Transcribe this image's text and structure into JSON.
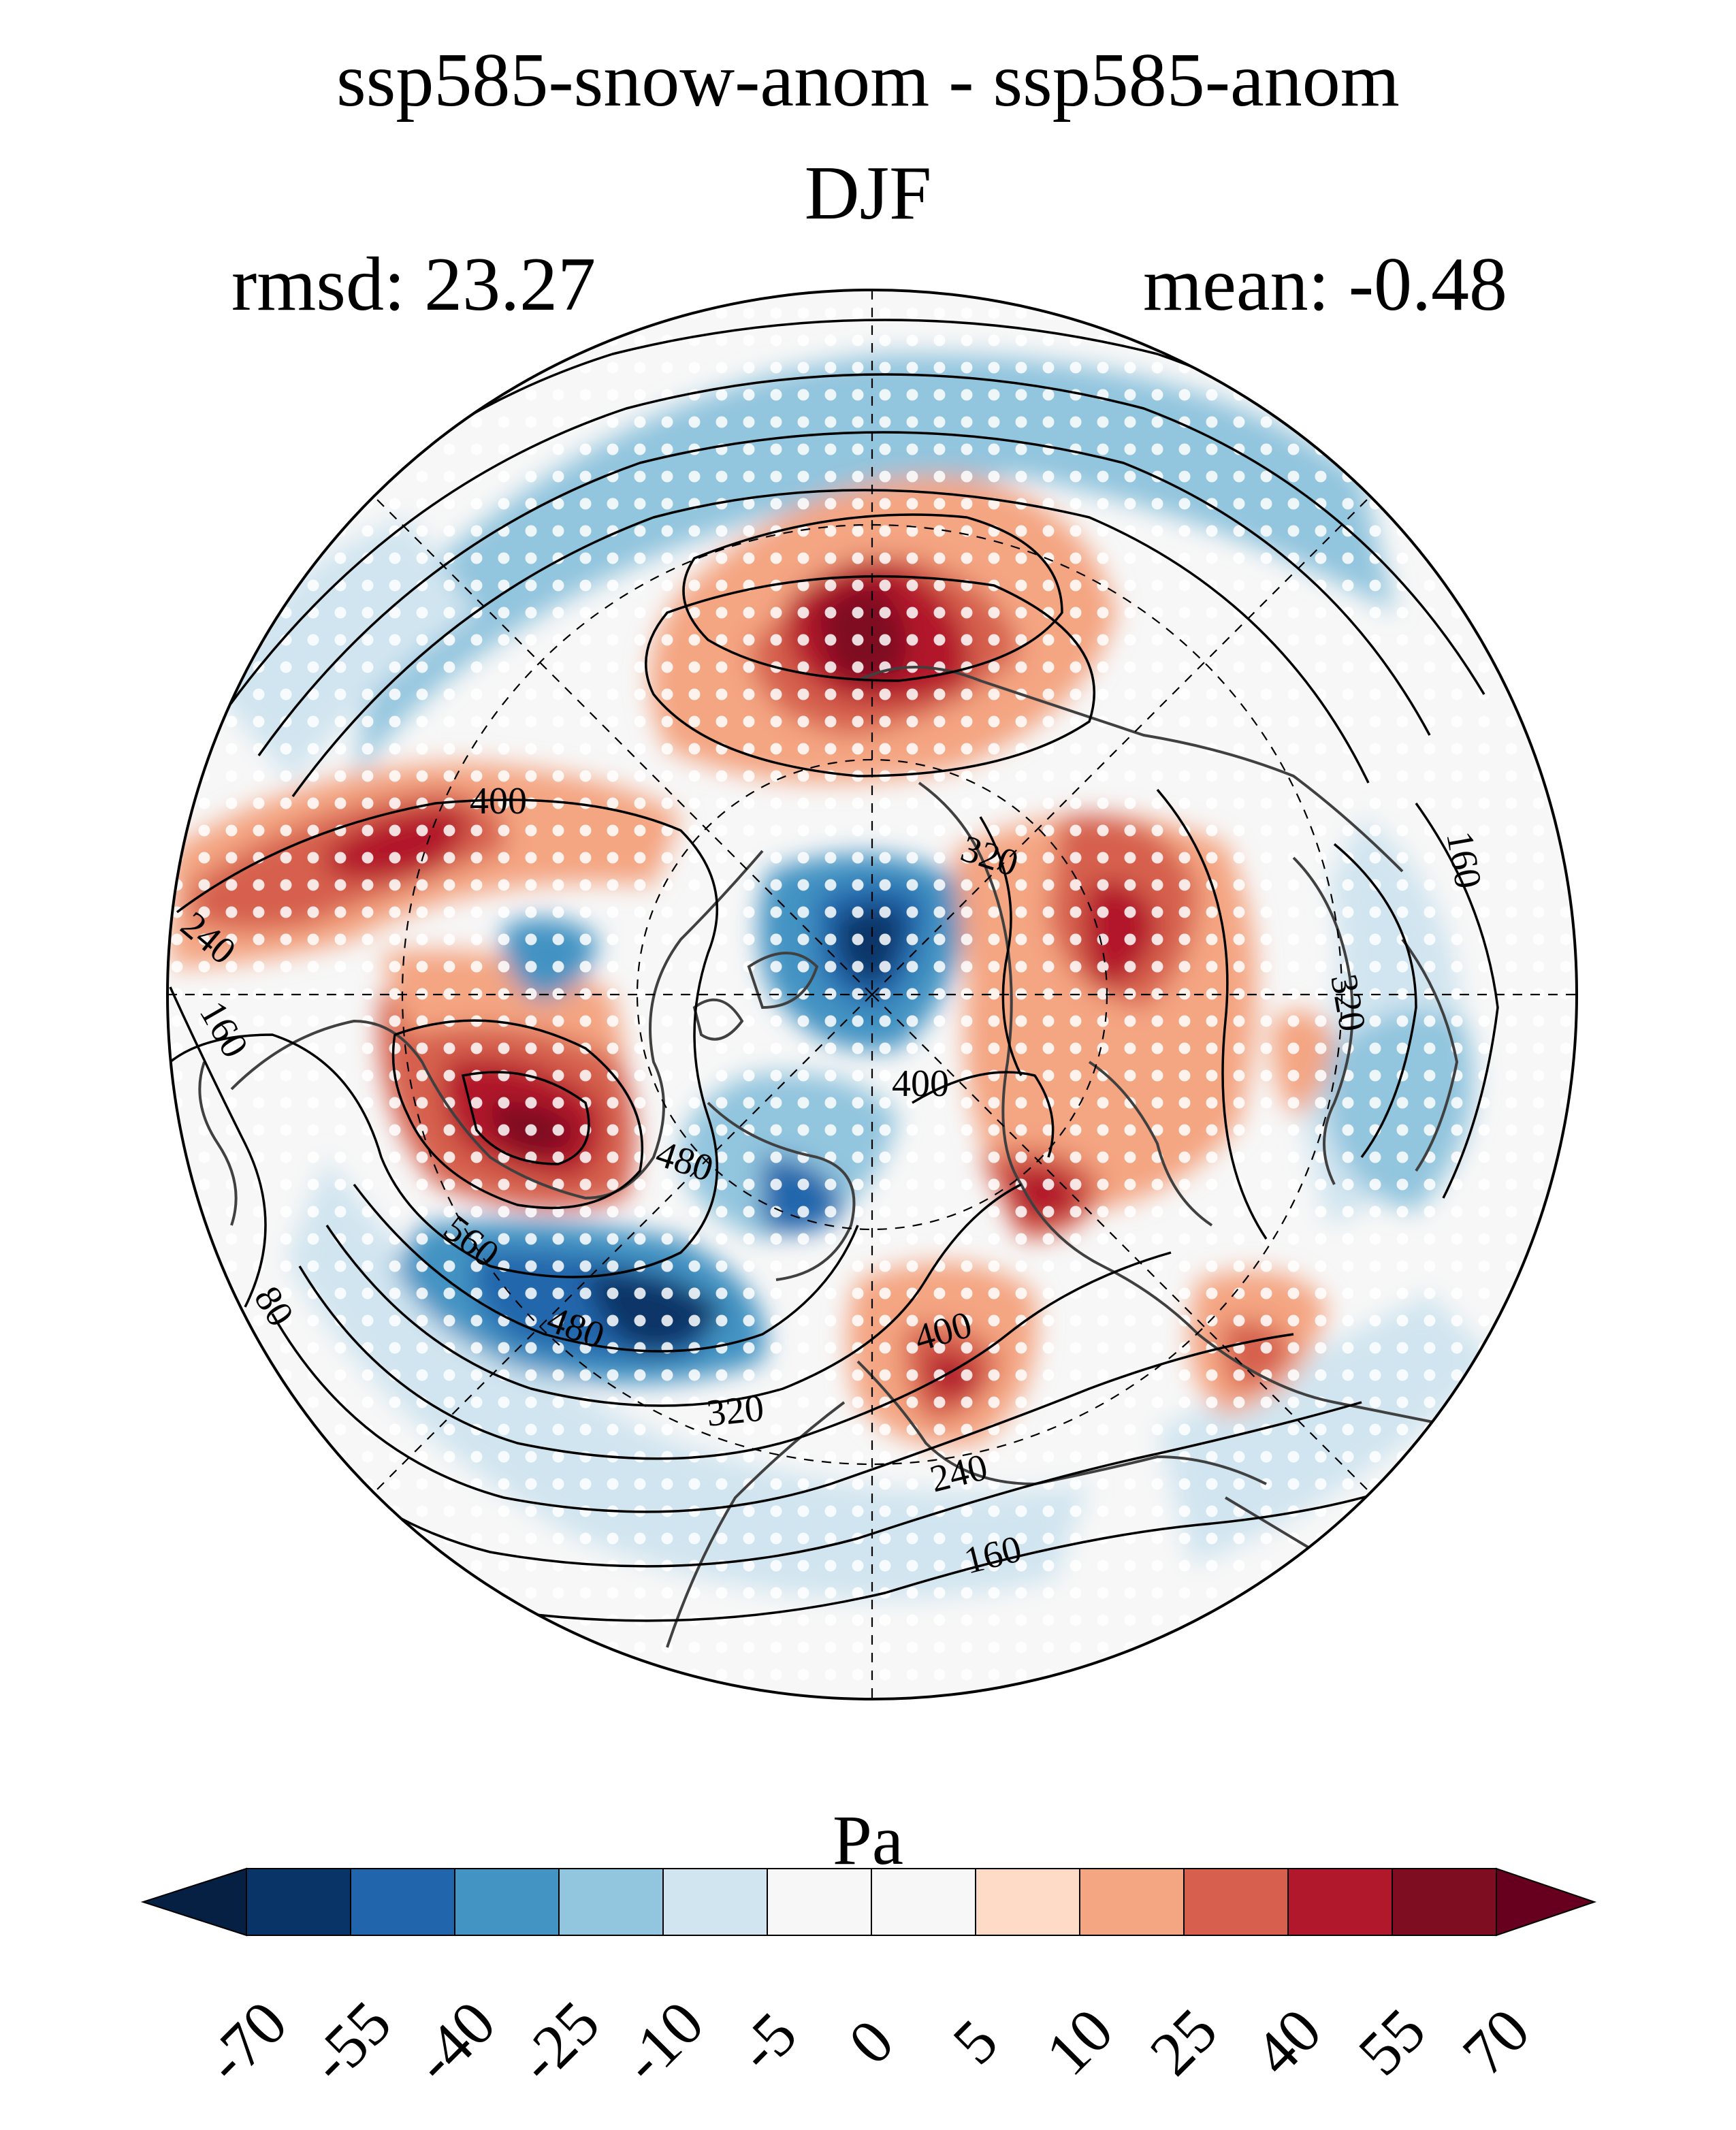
{
  "figure": {
    "title": "ssp585-snow-anom - ssp585-anom",
    "season": "DJF",
    "rmsd_text": "rmsd: 23.27",
    "mean_text": "mean: -0.48"
  },
  "map": {
    "projection": "north polar stereographic",
    "stippling": "white dots",
    "contour_color": "#000000",
    "coastline_color": "#404040",
    "contour_labels": [
      {
        "id": "c400a",
        "text": "400"
      },
      {
        "id": "c320a",
        "text": "320"
      },
      {
        "id": "c240a",
        "text": "240"
      },
      {
        "id": "c160a",
        "text": "160"
      },
      {
        "id": "c400b",
        "text": "400"
      },
      {
        "id": "c480a",
        "text": "480"
      },
      {
        "id": "c560",
        "text": "560"
      },
      {
        "id": "c480b",
        "text": "480"
      },
      {
        "id": "c400c",
        "text": "400"
      },
      {
        "id": "c320b",
        "text": "320"
      },
      {
        "id": "c240b",
        "text": "240"
      },
      {
        "id": "c160b",
        "text": "160"
      },
      {
        "id": "c80",
        "text": "80"
      },
      {
        "id": "c160c",
        "text": "160"
      },
      {
        "id": "c320c",
        "text": "320"
      }
    ]
  },
  "colorbar": {
    "units": "Pa",
    "bounds": [
      "-70",
      "-55",
      "-40",
      "-25",
      "-10",
      "-5",
      "0",
      "5",
      "10",
      "25",
      "40",
      "55",
      "70"
    ],
    "colors": [
      "#083467",
      "#2166ac",
      "#4393c3",
      "#92c5de",
      "#d1e5f0",
      "#f7f7f7",
      "#f7f7f7",
      "#fddbc7",
      "#f4a582",
      "#d6604d",
      "#b2182b",
      "#7e0d22"
    ],
    "under_color": "#052042",
    "over_color": "#67001f"
  }
}
